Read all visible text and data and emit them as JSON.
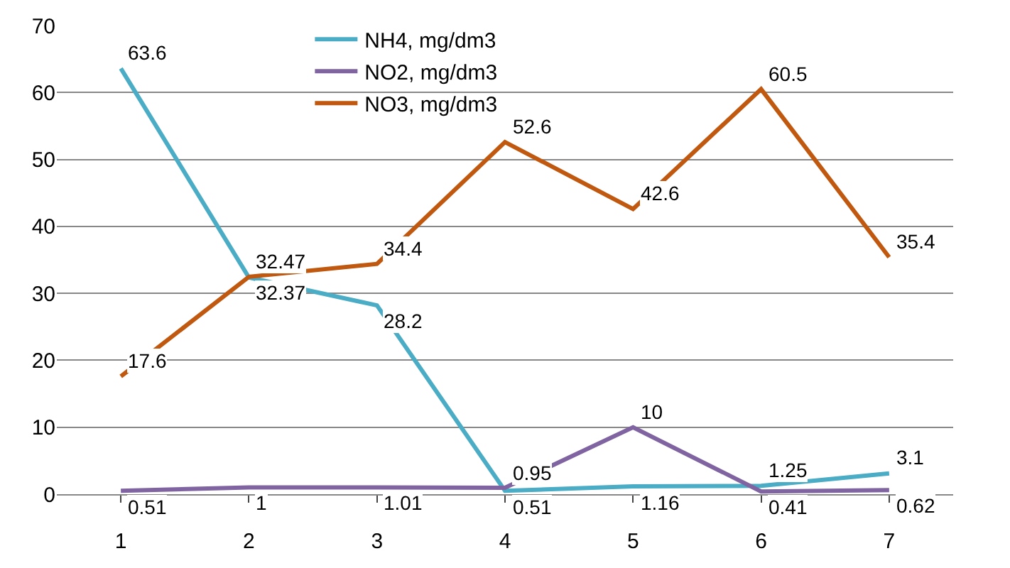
{
  "chart_data": {
    "type": "line",
    "categories": [
      "1",
      "2",
      "3",
      "4",
      "5",
      "6",
      "7"
    ],
    "series": [
      {
        "name": "NH4, mg/dm3",
        "color": "#4bacc6",
        "values": [
          63.6,
          32.37,
          28.2,
          0.51,
          1.16,
          1.25,
          3.1
        ]
      },
      {
        "name": "NO2, mg/dm3",
        "color": "#8064a2",
        "values": [
          0.51,
          1,
          1.01,
          0.95,
          10,
          0.41,
          0.62
        ]
      },
      {
        "name": "NO3, mg/dm3",
        "color": "#c0590f",
        "values": [
          17.6,
          32.47,
          34.4,
          52.6,
          42.6,
          60.5,
          35.4
        ]
      }
    ],
    "ylim": [
      0,
      70
    ],
    "yticks": [
      0,
      10,
      20,
      30,
      40,
      50,
      60,
      70
    ],
    "grid": "y",
    "legend": "top",
    "marker": "none",
    "line_style": "solid",
    "data_labels": true
  }
}
